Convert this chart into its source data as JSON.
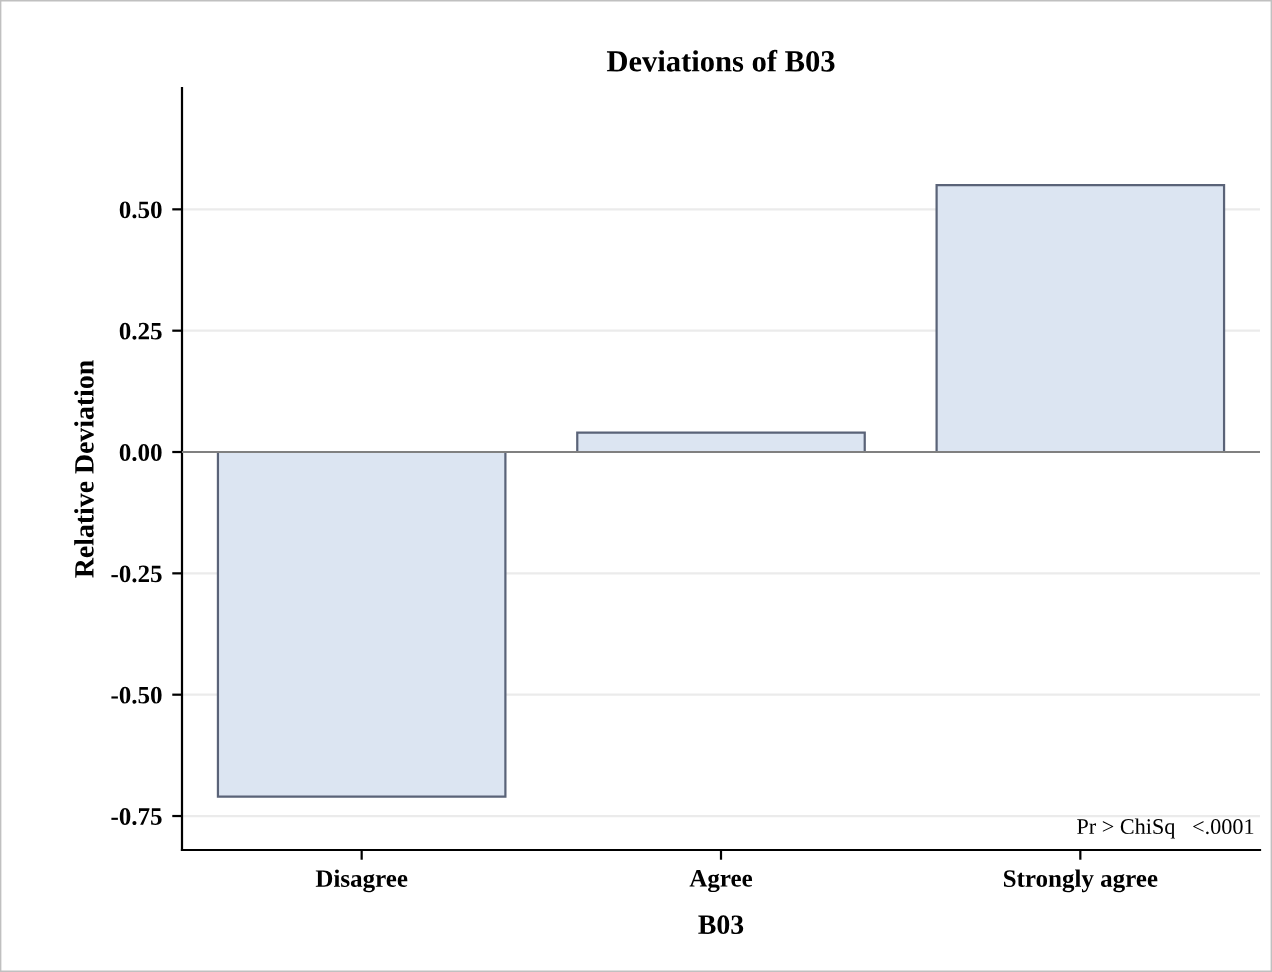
{
  "chart_data": {
    "type": "bar",
    "title": "Deviations of B03",
    "xlabel": "B03",
    "ylabel": "Relative Deviation",
    "categories": [
      "Disagree",
      "Agree",
      "Strongly agree"
    ],
    "values": [
      -0.71,
      0.04,
      0.55
    ],
    "color": "#dce5f2",
    "ylim": [
      -0.82,
      0.75
    ],
    "yticks": [
      {
        "value": -0.75,
        "label": "-0.75"
      },
      {
        "value": -0.5,
        "label": "-0.50"
      },
      {
        "value": -0.25,
        "label": "-0.25"
      },
      {
        "value": 0,
        "label": "0.00"
      },
      {
        "value": 0.25,
        "label": "0.25"
      },
      {
        "value": 0.5,
        "label": "0.50"
      }
    ],
    "grid": "y",
    "ref_lines": [
      {
        "axis": "y",
        "value": 0,
        "color": "#808080"
      }
    ],
    "annotations": [
      "Pr > ChiSq   <.0001"
    ]
  }
}
